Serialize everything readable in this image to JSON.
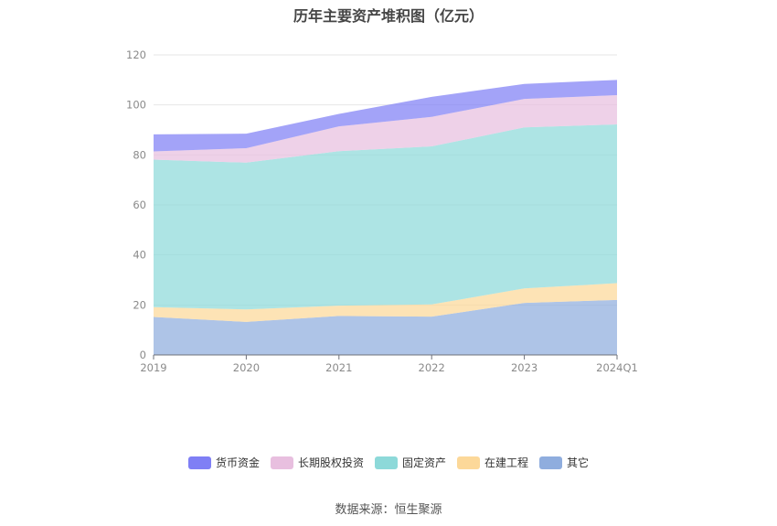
{
  "chart_data": {
    "type": "area",
    "title": "历年主要资产堆积图（亿元）",
    "categories": [
      "2019",
      "2020",
      "2021",
      "2022",
      "2023",
      "2024Q1"
    ],
    "ylim": [
      0,
      120
    ],
    "yticks": [
      0,
      20,
      40,
      60,
      80,
      100,
      120
    ],
    "stacked": true,
    "grid": true,
    "legend_position": "bottom",
    "series": [
      {
        "name": "其它",
        "color": "#8fadde",
        "values": [
          15.2,
          13.2,
          15.6,
          15.3,
          20.8,
          22.0
        ]
      },
      {
        "name": "在建工程",
        "color": "#fcd899",
        "values": [
          3.9,
          5.0,
          4.1,
          4.9,
          5.8,
          6.7
        ]
      },
      {
        "name": "固定资产",
        "color": "#8dd9d9",
        "values": [
          59.0,
          58.7,
          61.8,
          63.2,
          64.4,
          63.5
        ]
      },
      {
        "name": "长期股权投资",
        "color": "#e8bfdf",
        "values": [
          3.3,
          5.8,
          9.9,
          11.8,
          11.4,
          11.7
        ]
      },
      {
        "name": "货币资金",
        "color": "#7f7ff5",
        "values": [
          6.8,
          5.8,
          5.0,
          8.0,
          6.0,
          6.1
        ]
      }
    ]
  },
  "source": "数据来源：恒生聚源"
}
